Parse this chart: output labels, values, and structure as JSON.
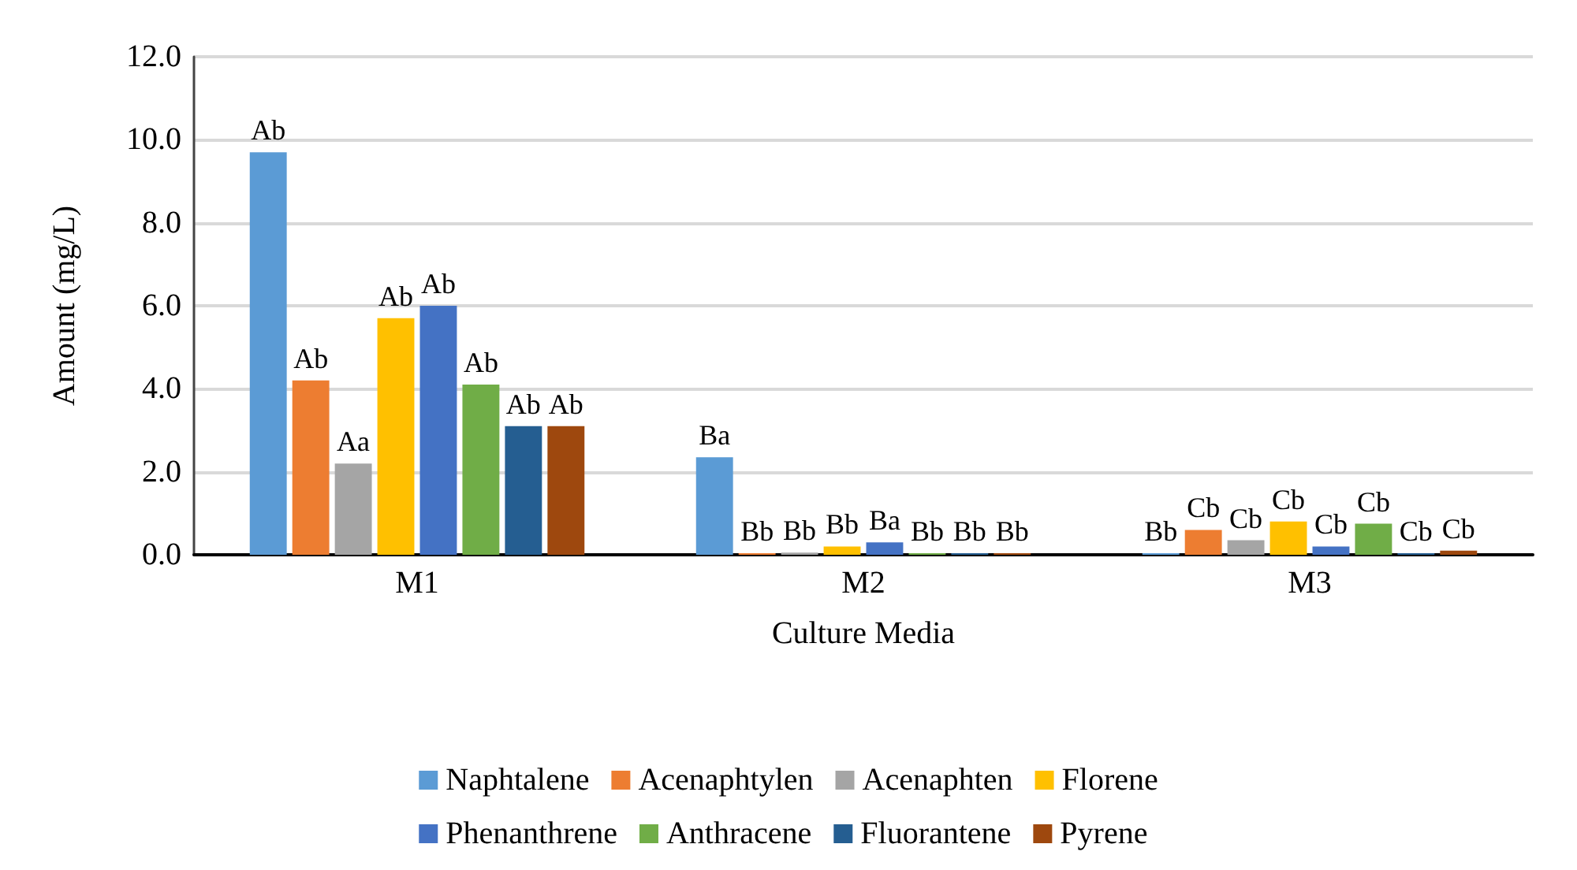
{
  "chart_data": {
    "type": "bar",
    "xlabel": "Culture Media",
    "ylabel": "Amount (mg/L)",
    "categories": [
      "M1",
      "M2",
      "M3"
    ],
    "series": [
      {
        "name": "Naphtalene",
        "color": "#5b9bd5",
        "values": [
          9.7,
          2.35,
          0
        ],
        "value_labels": [
          "Ab",
          "Ba",
          "Bb"
        ]
      },
      {
        "name": "Acenaphtylen",
        "color": "#ed7d31",
        "values": [
          4.2,
          0,
          0.6
        ],
        "value_labels": [
          "Ab",
          "Bb",
          "Cb"
        ]
      },
      {
        "name": "Acenaphten",
        "color": "#a5a5a5",
        "values": [
          2.2,
          0.05,
          0.35
        ],
        "value_labels": [
          "Aa",
          "Bb",
          "Cb"
        ]
      },
      {
        "name": "Florene",
        "color": "#ffc000",
        "values": [
          5.7,
          0.2,
          0.8
        ],
        "value_labels": [
          "Ab",
          "Bb",
          "Cb"
        ]
      },
      {
        "name": "Phenanthrene",
        "color": "#4472c4",
        "values": [
          6.0,
          0.3,
          0.2
        ],
        "value_labels": [
          "Ab",
          "Ba",
          "Cb"
        ]
      },
      {
        "name": "Anthracene",
        "color": "#70ad47",
        "values": [
          4.1,
          0,
          0.75
        ],
        "value_labels": [
          "Ab",
          "Bb",
          "Cb"
        ]
      },
      {
        "name": "Fluorantene",
        "color": "#255e91",
        "values": [
          3.1,
          0,
          0
        ],
        "value_labels": [
          "Ab",
          "Bb",
          "Cb"
        ]
      },
      {
        "name": "Pyrene",
        "color": "#9e480e",
        "values": [
          3.1,
          0,
          0.1
        ],
        "value_labels": [
          "Ab",
          "Bb",
          "Cb"
        ]
      }
    ],
    "ylim": [
      0,
      12
    ],
    "yticks": [
      {
        "value": 0,
        "label": "0.0"
      },
      {
        "value": 2,
        "label": "2.0"
      },
      {
        "value": 4,
        "label": "4.0"
      },
      {
        "value": 6,
        "label": "6.0"
      },
      {
        "value": 8,
        "label": "8.0"
      },
      {
        "value": 10,
        "label": "10.0"
      },
      {
        "value": 12,
        "label": "12.0"
      }
    ],
    "grid": "y",
    "legend": "bottom"
  }
}
